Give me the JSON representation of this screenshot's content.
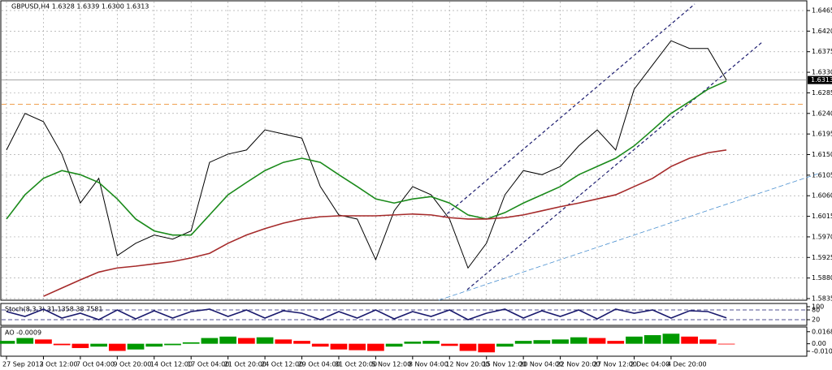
{
  "chart_data": [
    {
      "type": "line",
      "title": "GBPUSD,H4  1.6328 1.6339 1.6300 1.6313",
      "categories": [
        "27 Sep 2013",
        null,
        "2 Oct 12:00",
        null,
        "7 Oct 04:00",
        null,
        "9 Oct 20:00",
        null,
        "14 Oct 12:00",
        null,
        "17 Oct 04:00",
        null,
        "21 Oct 20:00",
        null,
        "24 Oct 12:00",
        null,
        "29 Oct 04:00",
        null,
        "31 Oct 20:00",
        null,
        "5 Nov 12:00",
        null,
        "8 Nov 04:00",
        null,
        "12 Nov 20:00",
        null,
        "15 Nov 12:00",
        null,
        "20 Nov 04:00",
        null,
        "22 Nov 20:00",
        null,
        "27 Nov 12:00",
        null,
        "2 Dec 04:00",
        null,
        "4 Dec 20:00",
        null,
        null,
        null
      ],
      "series": [
        {
          "color": "#000000",
          "values": [
            1.616,
            1.624,
            1.6222,
            1.6151,
            1.6044,
            1.6098,
            1.5929,
            1.5956,
            1.5974,
            1.5965,
            1.5983,
            1.6133,
            1.6151,
            1.616,
            1.6204,
            1.6195,
            1.6186,
            1.608,
            1.6018,
            1.6009,
            1.592,
            1.6027,
            1.608,
            1.6062,
            1.6009,
            1.5902,
            1.5956,
            1.6062,
            1.6115,
            1.6106,
            1.6124,
            1.6169,
            1.6204,
            1.616,
            1.6293,
            1.6346,
            1.6399,
            1.6382,
            1.6382,
            1.6313
          ]
        },
        {
          "color": "#1a8a1a",
          "values": [
            1.6009,
            1.6062,
            1.6098,
            1.6115,
            1.6106,
            1.6089,
            1.6053,
            1.6009,
            1.5983,
            1.5974,
            1.5974,
            1.6018,
            1.6062,
            1.6089,
            1.6115,
            1.6133,
            1.6142,
            1.6133,
            1.6106,
            1.608,
            1.6053,
            1.6044,
            1.6053,
            1.6058,
            1.6044,
            1.6018,
            1.6009,
            1.6023,
            1.6044,
            1.6062,
            1.608,
            1.6106,
            1.6124,
            1.6142,
            1.6169,
            1.6204,
            1.624,
            1.6266,
            1.6293,
            1.6311
          ]
        },
        {
          "color": "#a52a2a",
          "values": [
            null,
            null,
            1.584,
            1.5858,
            1.5876,
            1.5893,
            1.5902,
            1.5906,
            1.5911,
            1.5916,
            1.5924,
            1.5934,
            1.5956,
            1.5974,
            1.5988,
            1.6,
            1.6009,
            1.6014,
            1.6016,
            1.6016,
            1.6016,
            1.6018,
            1.602,
            1.6018,
            1.6012,
            1.6009,
            1.6009,
            1.6012,
            1.6018,
            1.6027,
            1.6036,
            1.6044,
            1.6053,
            1.6062,
            1.608,
            1.6098,
            1.6124,
            1.6142,
            1.6154,
            1.616
          ]
        }
      ],
      "ylim": [
        1.5835,
        1.6465
      ],
      "yticks": [
        1.6465,
        {
          "value": 1.642,
          "label": "1.6420"
        },
        1.6375,
        {
          "value": 1.633,
          "label": "1.6330"
        },
        1.6285,
        {
          "value": 1.624,
          "label": "1.6240"
        },
        1.6195,
        {
          "value": 1.615,
          "label": "1.6150"
        },
        1.6105,
        {
          "value": 1.606,
          "label": "1.6060"
        },
        1.6015,
        {
          "value": 1.597,
          "label": "1.5970"
        },
        1.5925,
        {
          "value": 1.588,
          "label": "1.5880"
        },
        1.5835
      ],
      "last_price": 1.6313,
      "level": 1.626,
      "level_color": "#f0a050",
      "grid": true
    },
    {
      "type": "line",
      "title": "Stoch(8,3,3) 31.1358 38.7581",
      "series": [
        {
          "color": "#1a1a6e",
          "values": [
            70,
            40,
            85,
            30,
            60,
            20,
            80,
            25,
            75,
            30,
            70,
            85,
            40,
            80,
            30,
            75,
            60,
            20,
            70,
            30,
            80,
            25,
            70,
            40,
            80,
            20,
            60,
            85,
            30,
            75,
            40,
            80,
            25,
            85,
            60,
            80,
            30,
            75,
            70,
            31
          ]
        }
      ],
      "ylim": [
        0,
        100
      ],
      "yticks": [
        100,
        80,
        20
      ]
    },
    {
      "type": "bar",
      "title": "AO -0.0009",
      "values": [
        0.004,
        0.008,
        0.006,
        -0.002,
        -0.006,
        -0.004,
        -0.01,
        -0.008,
        -0.004,
        -0.002,
        0.002,
        0.008,
        0.01,
        0.008,
        0.009,
        0.006,
        0.004,
        -0.004,
        -0.008,
        -0.009,
        -0.01,
        -0.004,
        0.003,
        0.004,
        -0.003,
        -0.01,
        -0.012,
        -0.004,
        0.004,
        0.005,
        0.006,
        0.009,
        0.008,
        0.004,
        0.01,
        0.012,
        0.014,
        0.01,
        0.006,
        -0.0009
      ],
      "up_color": "#009900",
      "down_color": "#ff0000",
      "ylim": [
        -0.014,
        0.02
      ],
      "yticks": [
        {
          "value": 0.01684,
          "label": "0.01684"
        },
        {
          "value": 0,
          "label": "0.00"
        },
        {
          "value": -0.0105,
          "label": "-0.0105"
        }
      ]
    }
  ]
}
